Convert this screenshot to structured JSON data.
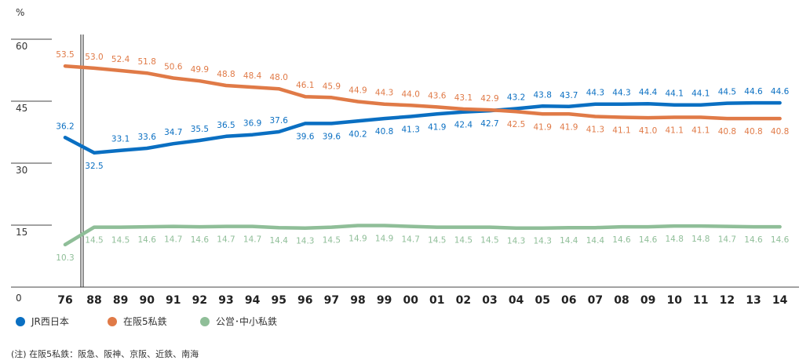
{
  "chart_data": {
    "type": "line",
    "title": "",
    "xlabel": "",
    "ylabel": "%",
    "ylim": [
      0,
      60
    ],
    "yticks": [
      0,
      15,
      30,
      45,
      60
    ],
    "categories": [
      "76",
      "88",
      "89",
      "90",
      "91",
      "92",
      "93",
      "94",
      "95",
      "96",
      "97",
      "98",
      "99",
      "00",
      "01",
      "02",
      "03",
      "04",
      "05",
      "06",
      "07",
      "08",
      "09",
      "10",
      "11",
      "12",
      "13",
      "14"
    ],
    "series": [
      {
        "name": "JR西日本",
        "color": "#0a6fc2",
        "values": [
          36.2,
          32.5,
          33.1,
          33.6,
          34.7,
          35.5,
          36.5,
          36.9,
          37.6,
          39.6,
          39.6,
          40.2,
          40.8,
          41.3,
          41.9,
          42.4,
          42.7,
          43.2,
          43.8,
          43.7,
          44.3,
          44.3,
          44.4,
          44.1,
          44.1,
          44.5,
          44.6,
          44.6
        ]
      },
      {
        "name": "在阪5私鉄",
        "color": "#e07a47",
        "values": [
          53.5,
          53.0,
          52.4,
          51.8,
          50.6,
          49.9,
          48.8,
          48.4,
          48.0,
          46.1,
          45.9,
          44.9,
          44.3,
          44.0,
          43.6,
          43.1,
          42.9,
          42.5,
          41.9,
          41.9,
          41.3,
          41.1,
          41.0,
          41.1,
          41.1,
          40.8,
          40.8,
          40.8
        ]
      },
      {
        "name": "公営･中小私鉄",
        "color": "#8fbe98",
        "values": [
          10.3,
          14.5,
          14.5,
          14.6,
          14.7,
          14.6,
          14.7,
          14.7,
          14.4,
          14.3,
          14.5,
          14.9,
          14.9,
          14.7,
          14.5,
          14.5,
          14.5,
          14.3,
          14.3,
          14.4,
          14.4,
          14.6,
          14.6,
          14.8,
          14.8,
          14.7,
          14.6,
          14.6
        ]
      }
    ],
    "legend_position": "bottom-left",
    "axis_break_after": "76",
    "note": "(注) 在阪5私鉄：阪急、阪神、京阪、近鉄、南海"
  }
}
